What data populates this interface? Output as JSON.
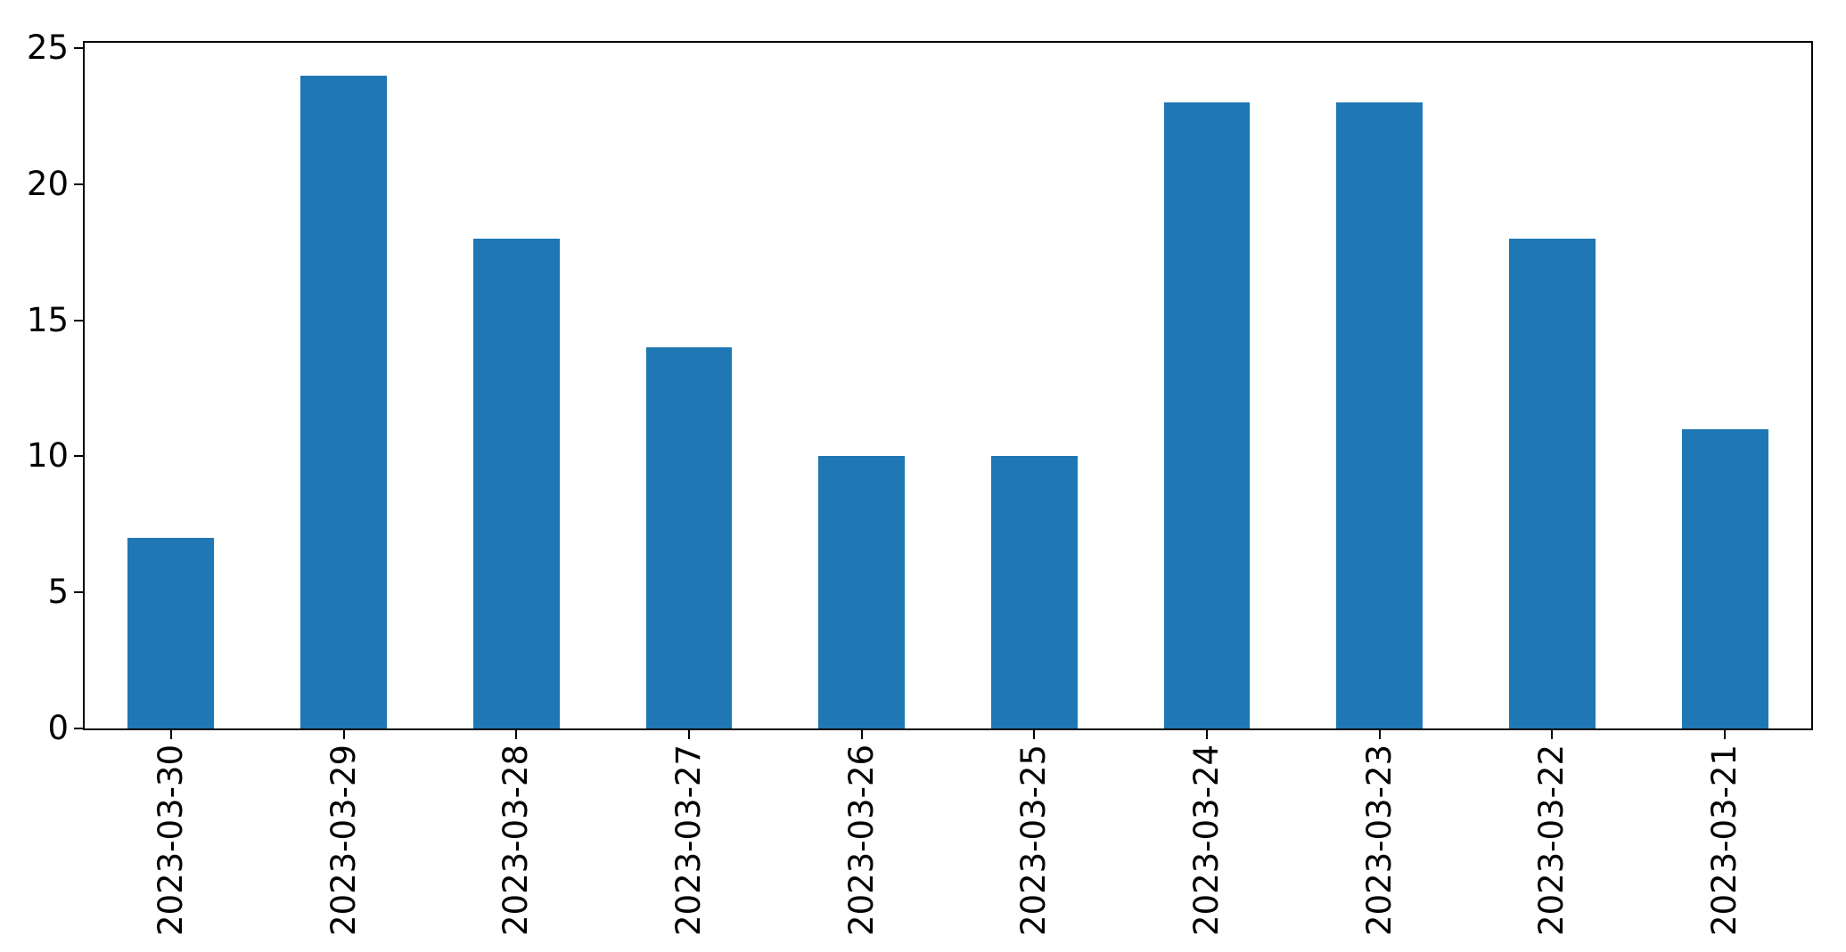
{
  "chart_data": {
    "type": "bar",
    "title": "",
    "xlabel": "",
    "ylabel": "",
    "categories": [
      "2023-03-30",
      "2023-03-29",
      "2023-03-28",
      "2023-03-27",
      "2023-03-26",
      "2023-03-25",
      "2023-03-24",
      "2023-03-23",
      "2023-03-22",
      "2023-03-21"
    ],
    "values": [
      7,
      24,
      18,
      14,
      10,
      10,
      23,
      23,
      18,
      11
    ],
    "ylim": [
      0,
      25.2
    ],
    "yticks": [
      0,
      5,
      10,
      15,
      20,
      25
    ],
    "bar_color": "#1f77b4",
    "bar_width_fraction": 0.5,
    "x_tick_label_rotation": 90,
    "grid": false,
    "legend_position": "none"
  }
}
